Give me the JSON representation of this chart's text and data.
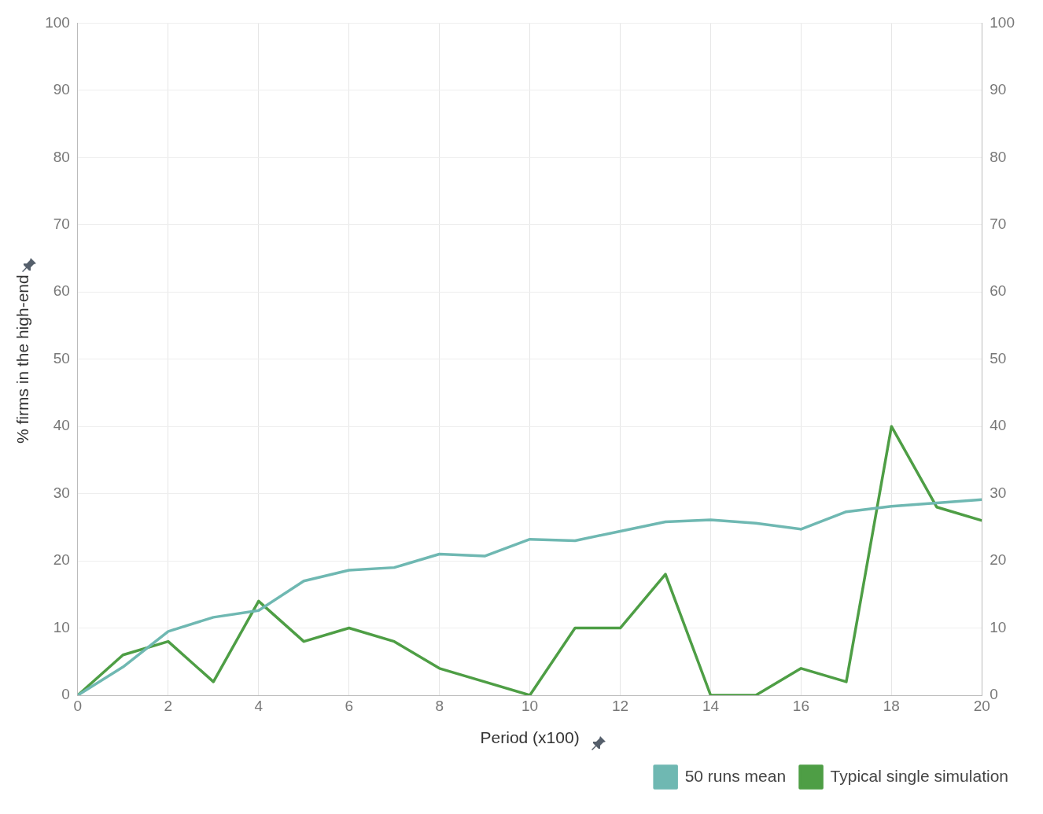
{
  "chart_data": {
    "type": "line",
    "xlabel": "Period (x100)",
    "ylabel": "% firms in the high-end",
    "x": [
      0,
      1,
      2,
      3,
      4,
      5,
      6,
      7,
      8,
      9,
      10,
      11,
      12,
      13,
      14,
      15,
      16,
      17,
      18,
      19,
      20
    ],
    "series": [
      {
        "name": "50 runs mean",
        "color": "#6fb8b2",
        "values": [
          0,
          4.2,
          9.5,
          11.6,
          12.6,
          17,
          18.6,
          19,
          21,
          20.7,
          23.2,
          23,
          24.4,
          25.8,
          26.1,
          25.6,
          24.7,
          27.3,
          28.1,
          28.6,
          29.1
        ]
      },
      {
        "name": "Typical single simulation",
        "color": "#4e9e45",
        "values": [
          0,
          6,
          8,
          2,
          14,
          8,
          10,
          8,
          4,
          2,
          0,
          10,
          10,
          18,
          0,
          0,
          4,
          2,
          40,
          28,
          26
        ]
      }
    ],
    "xlim": [
      0,
      20
    ],
    "xticks": [
      0,
      2,
      4,
      6,
      8,
      10,
      12,
      14,
      16,
      18,
      20
    ],
    "ylim": [
      0,
      100
    ],
    "yticks": [
      0,
      10,
      20,
      30,
      40,
      50,
      60,
      70,
      80,
      90,
      100
    ],
    "y2lim": [
      0,
      100
    ],
    "y2ticks": [
      0,
      10,
      20,
      30,
      40,
      50,
      60,
      70,
      80,
      90,
      100
    ],
    "grid": true,
    "legend": "bottom right",
    "marker": "none",
    "line_style": "solid"
  }
}
